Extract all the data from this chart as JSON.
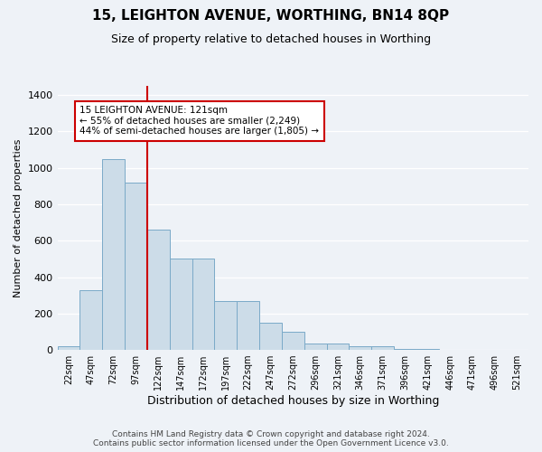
{
  "title": "15, LEIGHTON AVENUE, WORTHING, BN14 8QP",
  "subtitle": "Size of property relative to detached houses in Worthing",
  "xlabel": "Distribution of detached houses by size in Worthing",
  "ylabel": "Number of detached properties",
  "footer_line1": "Contains HM Land Registry data © Crown copyright and database right 2024.",
  "footer_line2": "Contains public sector information licensed under the Open Government Licence v3.0.",
  "annotation_line1": "15 LEIGHTON AVENUE: 121sqm",
  "annotation_line2": "← 55% of detached houses are smaller (2,249)",
  "annotation_line3": "44% of semi-detached houses are larger (1,805) →",
  "bar_color": "#ccdce8",
  "bar_edge_color": "#7aaac8",
  "bar_heights": [
    20,
    330,
    1050,
    920,
    660,
    500,
    500,
    270,
    270,
    150,
    100,
    35,
    35,
    20,
    20,
    5,
    5,
    0,
    0,
    0,
    0
  ],
  "categories": [
    "22sqm",
    "47sqm",
    "72sqm",
    "97sqm",
    "122sqm",
    "147sqm",
    "172sqm",
    "197sqm",
    "222sqm",
    "247sqm",
    "272sqm",
    "296sqm",
    "321sqm",
    "346sqm",
    "371sqm",
    "396sqm",
    "421sqm",
    "446sqm",
    "471sqm",
    "496sqm",
    "521sqm"
  ],
  "ylim": [
    0,
    1450
  ],
  "yticks": [
    0,
    200,
    400,
    600,
    800,
    1000,
    1200,
    1400
  ],
  "property_line_x": 3.5,
  "background_color": "#eef2f7",
  "grid_color": "#ffffff",
  "annotation_box_color": "#ffffff",
  "annotation_box_edge": "#cc0000",
  "red_line_color": "#cc0000",
  "title_fontsize": 11,
  "subtitle_fontsize": 9,
  "ylabel_fontsize": 8,
  "xlabel_fontsize": 9,
  "tick_fontsize": 7,
  "footer_fontsize": 6.5,
  "ann_fontsize": 7.5
}
